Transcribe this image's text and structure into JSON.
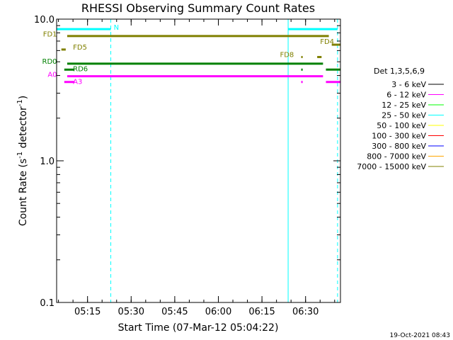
{
  "chart_data": {
    "type": "line",
    "title": "RHESSI Observing Summary Count Rates",
    "xlabel": "Start Time (07-Mar-12 05:04:22)",
    "ylabel_main": "Count Rate (s",
    "ylabel_sup1": "-1",
    "ylabel_mid": " detector",
    "ylabel_sup2": "-1",
    "ylabel_end": ")",
    "y_scale": "log",
    "ylim": [
      0.1,
      10.0
    ],
    "y_ticks": [
      {
        "value": 0.1,
        "label": "0.1"
      },
      {
        "value": 1.0,
        "label": "1.0"
      },
      {
        "value": 10.0,
        "label": "10.0"
      }
    ],
    "xlim": [
      "05:04:22",
      "06:42:00"
    ],
    "x_ticks": [
      {
        "time": "05:15",
        "label": "05:15"
      },
      {
        "time": "05:30",
        "label": "05:30"
      },
      {
        "time": "05:45",
        "label": "05:45"
      },
      {
        "time": "06:00",
        "label": "06:00"
      },
      {
        "time": "06:15",
        "label": "06:15"
      },
      {
        "time": "06:30",
        "label": "06:30"
      }
    ],
    "legend_title": "Det 1,3,5,6,9",
    "legend_placement": "right",
    "legend": [
      {
        "label": "3 - 6 keV",
        "color": "#000000"
      },
      {
        "label": "6 - 12 keV",
        "color": "#ff00ff"
      },
      {
        "label": "12 - 25 keV",
        "color": "#00ff00"
      },
      {
        "label": "25 - 50 keV",
        "color": "#00ffff"
      },
      {
        "label": "50 - 100 keV",
        "color": "#ffff00"
      },
      {
        "label": "100 - 300 keV",
        "color": "#ff0000"
      },
      {
        "label": "300 - 800 keV",
        "color": "#0000ff"
      },
      {
        "label": "800 - 7000 keV",
        "color": "#ffa500"
      },
      {
        "label": "7000 - 15000 keV",
        "color": "#808000"
      }
    ],
    "flag_bars": [
      {
        "color": "#00ffff",
        "y": 8.5,
        "segments": [
          [
            "05:04:22",
            "05:23:00"
          ],
          [
            "06:24:00",
            "06:41:00"
          ]
        ]
      },
      {
        "color": "#808000",
        "y": 7.6,
        "segments": [
          [
            "05:08:00",
            "06:38:00"
          ]
        ]
      },
      {
        "color": "#808000",
        "y": 6.6,
        "segments": [
          [
            "06:39:00",
            "06:42:00"
          ]
        ]
      },
      {
        "color": "#808000",
        "y": 5.4,
        "segments": [
          [
            "06:34:00",
            "06:35:30"
          ]
        ]
      },
      {
        "color": "#808000",
        "y": 5.4,
        "segments": [
          [
            "06:28:30",
            "06:29:00"
          ]
        ]
      },
      {
        "color": "#808000",
        "y": 6.1,
        "segments": [
          [
            "05:06:00",
            "05:07:30"
          ]
        ]
      },
      {
        "color": "#008000",
        "y": 4.85,
        "segments": [
          [
            "05:08:00",
            "06:36:00"
          ]
        ]
      },
      {
        "color": "#008000",
        "y": 4.4,
        "segments": [
          [
            "05:07:00",
            "05:10:30"
          ],
          [
            "06:37:00",
            "06:42:00"
          ]
        ]
      },
      {
        "color": "#008000",
        "y": 4.4,
        "segments": [
          [
            "06:28:30",
            "06:29:00"
          ]
        ]
      },
      {
        "color": "#ff00ff",
        "y": 3.95,
        "segments": [
          [
            "05:08:00",
            "06:36:00"
          ]
        ]
      },
      {
        "color": "#ff00ff",
        "y": 3.6,
        "segments": [
          [
            "05:07:00",
            "05:10:30"
          ],
          [
            "06:37:00",
            "06:42:00"
          ]
        ]
      },
      {
        "color": "#ff00ff",
        "y": 3.6,
        "segments": [
          [
            "06:28:30",
            "06:29:00"
          ]
        ]
      }
    ],
    "flag_labels": [
      {
        "text": "N",
        "time": "05:24:00",
        "y": 8.7,
        "color": "#00ffff"
      },
      {
        "text": "FD1",
        "time": "05:04:30",
        "y": 7.8,
        "color": "#808000",
        "anchor": "end"
      },
      {
        "text": "FD5",
        "time": "05:10:00",
        "y": 6.3,
        "color": "#808000"
      },
      {
        "text": "FD4",
        "time": "06:35:00",
        "y": 6.9,
        "color": "#808000"
      },
      {
        "text": "FD8",
        "time": "06:26:00",
        "y": 5.6,
        "color": "#808000",
        "anchor": "end"
      },
      {
        "text": "RD0",
        "time": "05:04:30",
        "y": 5.0,
        "color": "#008000",
        "anchor": "end"
      },
      {
        "text": "RD6",
        "time": "05:10:00",
        "y": 4.45,
        "color": "#008000"
      },
      {
        "text": "A0",
        "time": "05:04:30",
        "y": 4.05,
        "color": "#ff00ff",
        "anchor": "end"
      },
      {
        "text": "A3",
        "time": "05:10:00",
        "y": 3.6,
        "color": "#ff00ff"
      }
    ],
    "vlines": [
      {
        "time": "05:04:22",
        "style": "solid",
        "color": "#00ffff"
      },
      {
        "time": "05:23:00",
        "style": "dashed",
        "color": "#00ffff"
      },
      {
        "time": "06:24:00",
        "style": "solid",
        "color": "#00ffff"
      },
      {
        "time": "06:41:00",
        "style": "dashed",
        "color": "#00ffff"
      }
    ]
  },
  "footer": {
    "timestamp": "19-Oct-2021 08:43"
  }
}
